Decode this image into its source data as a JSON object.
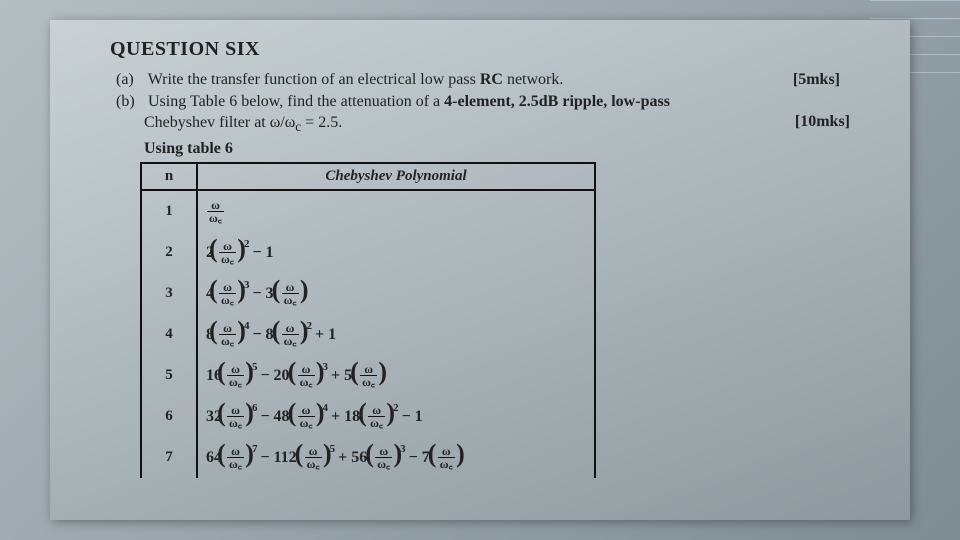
{
  "title": "QUESTION SIX",
  "partA": {
    "enum": "(a)",
    "text": "Write the transfer function of an electrical low pass ",
    "boldRC": "RC",
    "textAfter": " network.",
    "marks": "[5mks]"
  },
  "partB": {
    "enum": "(b)",
    "text1": "Using Table 6 below, find the attenuation of a ",
    "bold1": "4-element, 2.5dB ripple, low-pass",
    "text2": "Chebyshev filter at ω/ω",
    "subc": "c",
    "eq": " = 2.5.",
    "marks": "[10mks]"
  },
  "usingTable": "Using table 6",
  "table": {
    "head_n": "n",
    "head_poly": "Chebyshev Polynomial",
    "rows": [
      {
        "n": "1",
        "poly_kind": "n1"
      },
      {
        "n": "2",
        "poly_kind": "n2"
      },
      {
        "n": "3",
        "poly_kind": "n3"
      },
      {
        "n": "4",
        "poly_kind": "n4"
      },
      {
        "n": "5",
        "poly_kind": "n5"
      },
      {
        "n": "6",
        "poly_kind": "n6"
      },
      {
        "n": "7",
        "poly_kind": "n7"
      }
    ]
  },
  "frac": {
    "num": "ω",
    "den": "ω꜀"
  },
  "poly": {
    "n2": {
      "c1": "2",
      "e1": "2",
      "tail": " − 1"
    },
    "n3": {
      "c1": "4",
      "e1": "3",
      "c2": "− 3"
    },
    "n4": {
      "c1": "8",
      "e1": "4",
      "c2": "− 8",
      "e2": "2",
      "tail": " + 1"
    },
    "n5": {
      "c1": "16",
      "e1": "5",
      "c2": "− 20",
      "e2": "3",
      "c3": "+ 5"
    },
    "n6": {
      "c1": "32",
      "e1": "6",
      "c2": "− 48",
      "e2": "4",
      "c3": "+ 18",
      "e3": "2",
      "tail": " − 1"
    },
    "n7": {
      "c1": "64",
      "e1": "7",
      "c2": "− 112",
      "e2": "5",
      "c3": "+ 56",
      "e3": "3",
      "c4": "− 7"
    }
  }
}
